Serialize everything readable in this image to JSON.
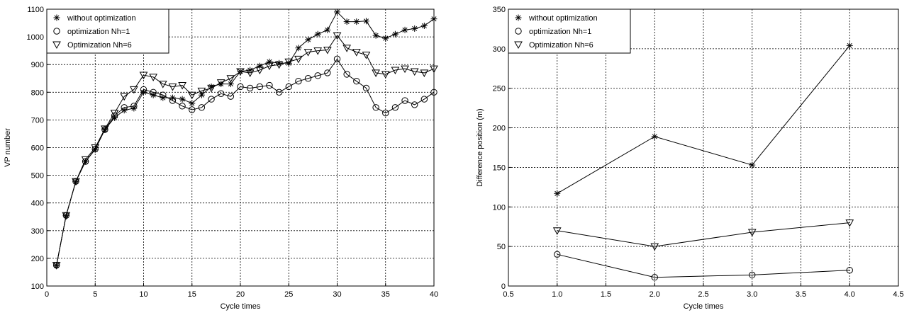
{
  "chart_data": [
    {
      "type": "line",
      "title": "",
      "xlabel": "Cycle times",
      "ylabel": "VP number",
      "xlim": [
        0,
        40
      ],
      "ylim": [
        100,
        1100
      ],
      "xticks": [
        0,
        5,
        10,
        15,
        20,
        25,
        30,
        35,
        40
      ],
      "yticks": [
        100,
        200,
        300,
        400,
        500,
        600,
        700,
        800,
        900,
        1000,
        1100
      ],
      "x_tick_labels": [
        "0",
        "5",
        "10",
        "15",
        "20",
        "25",
        "30",
        "35",
        "40"
      ],
      "y_tick_labels": [
        "100",
        "200",
        "300",
        "400",
        "500",
        "600",
        "700",
        "800",
        "900",
        "1000",
        "1100"
      ],
      "grid": true,
      "legend_position": "top-left",
      "x": [
        1,
        2,
        3,
        4,
        5,
        6,
        7,
        8,
        9,
        10,
        11,
        12,
        13,
        14,
        15,
        16,
        17,
        18,
        19,
        20,
        21,
        22,
        23,
        24,
        25,
        26,
        27,
        28,
        29,
        30,
        31,
        32,
        33,
        34,
        35,
        36,
        37,
        38,
        39,
        40
      ],
      "series": [
        {
          "name": "without optimization",
          "marker": "star",
          "values": [
            175,
            355,
            478,
            550,
            593,
            665,
            708,
            735,
            742,
            800,
            790,
            780,
            780,
            775,
            760,
            790,
            820,
            830,
            830,
            875,
            880,
            895,
            910,
            905,
            905,
            960,
            990,
            1010,
            1025,
            1090,
            1055,
            1055,
            1057,
            1005,
            995,
            1010,
            1025,
            1030,
            1040,
            1065
          ]
        },
        {
          "name": "optimization Nh=1",
          "marker": "circle",
          "values": [
            175,
            355,
            478,
            550,
            595,
            665,
            715,
            745,
            750,
            810,
            800,
            790,
            770,
            750,
            737,
            745,
            775,
            795,
            785,
            820,
            815,
            820,
            825,
            800,
            820,
            840,
            850,
            860,
            870,
            920,
            865,
            840,
            815,
            745,
            725,
            745,
            770,
            755,
            775,
            800
          ]
        },
        {
          "name": "Optimization Nh=6",
          "marker": "triangle",
          "values": [
            175,
            355,
            478,
            557,
            600,
            668,
            725,
            785,
            810,
            862,
            855,
            830,
            820,
            825,
            790,
            805,
            815,
            835,
            850,
            875,
            870,
            880,
            895,
            900,
            910,
            920,
            945,
            950,
            953,
            1005,
            960,
            945,
            935,
            870,
            865,
            880,
            885,
            875,
            870,
            885
          ]
        }
      ]
    },
    {
      "type": "line",
      "title": "",
      "xlabel": "Cycle times",
      "ylabel": "Difference position (m)",
      "xlim": [
        0.5,
        4.5
      ],
      "ylim": [
        0,
        350
      ],
      "xticks": [
        0.5,
        1.0,
        1.5,
        2.0,
        2.5,
        3.0,
        3.5,
        4.0,
        4.5
      ],
      "yticks": [
        0,
        50,
        100,
        150,
        200,
        250,
        300,
        350
      ],
      "x_tick_labels": [
        "0.5",
        "1.0",
        "1.5",
        "2.0",
        "2.5",
        "3.0",
        "3.5",
        "4.0",
        "4.5"
      ],
      "y_tick_labels": [
        "0",
        "50",
        "100",
        "150",
        "200",
        "250",
        "300",
        "350"
      ],
      "grid": true,
      "legend_position": "top-left",
      "x": [
        1.0,
        2.0,
        3.0,
        4.0
      ],
      "series": [
        {
          "name": "without optimization",
          "marker": "star",
          "values": [
            117,
            189,
            153,
            304
          ]
        },
        {
          "name": "optimization Nh=1",
          "marker": "circle",
          "values": [
            40,
            11,
            14,
            20
          ]
        },
        {
          "name": "Optimization Nh=6",
          "marker": "triangle",
          "values": [
            70,
            50,
            68,
            80
          ]
        }
      ]
    }
  ]
}
